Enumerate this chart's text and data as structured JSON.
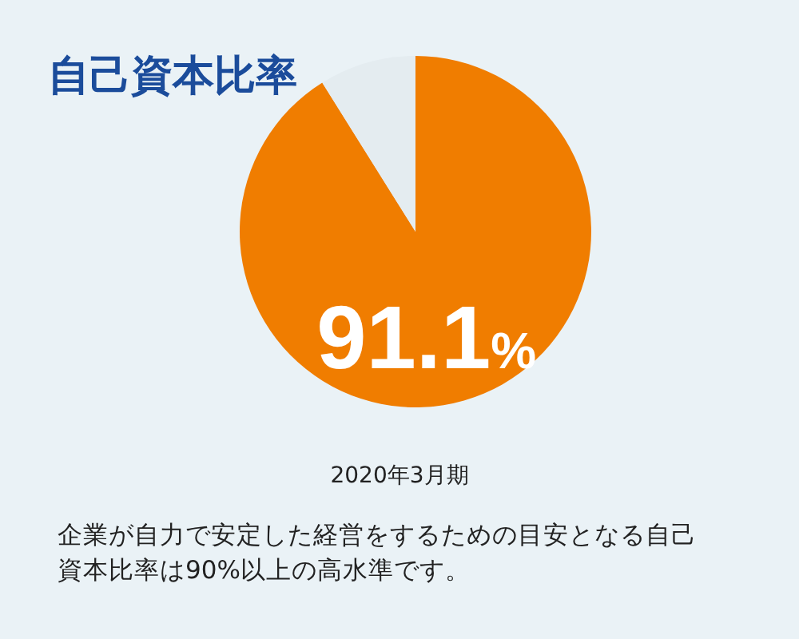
{
  "chart_data": {
    "type": "pie",
    "title": "自己資本比率",
    "categories": [
      null,
      null
    ],
    "values": [
      91.1,
      8.9
    ],
    "colors": [
      "#f07d00",
      "#e4ecf0"
    ],
    "value_labels": [
      "91.1%",
      null
    ],
    "annotations": [
      "2020年3月期",
      "企業が自力で安定した経営をするための目安となる自己資本比率は90%以上の高水準です。"
    ]
  }
}
